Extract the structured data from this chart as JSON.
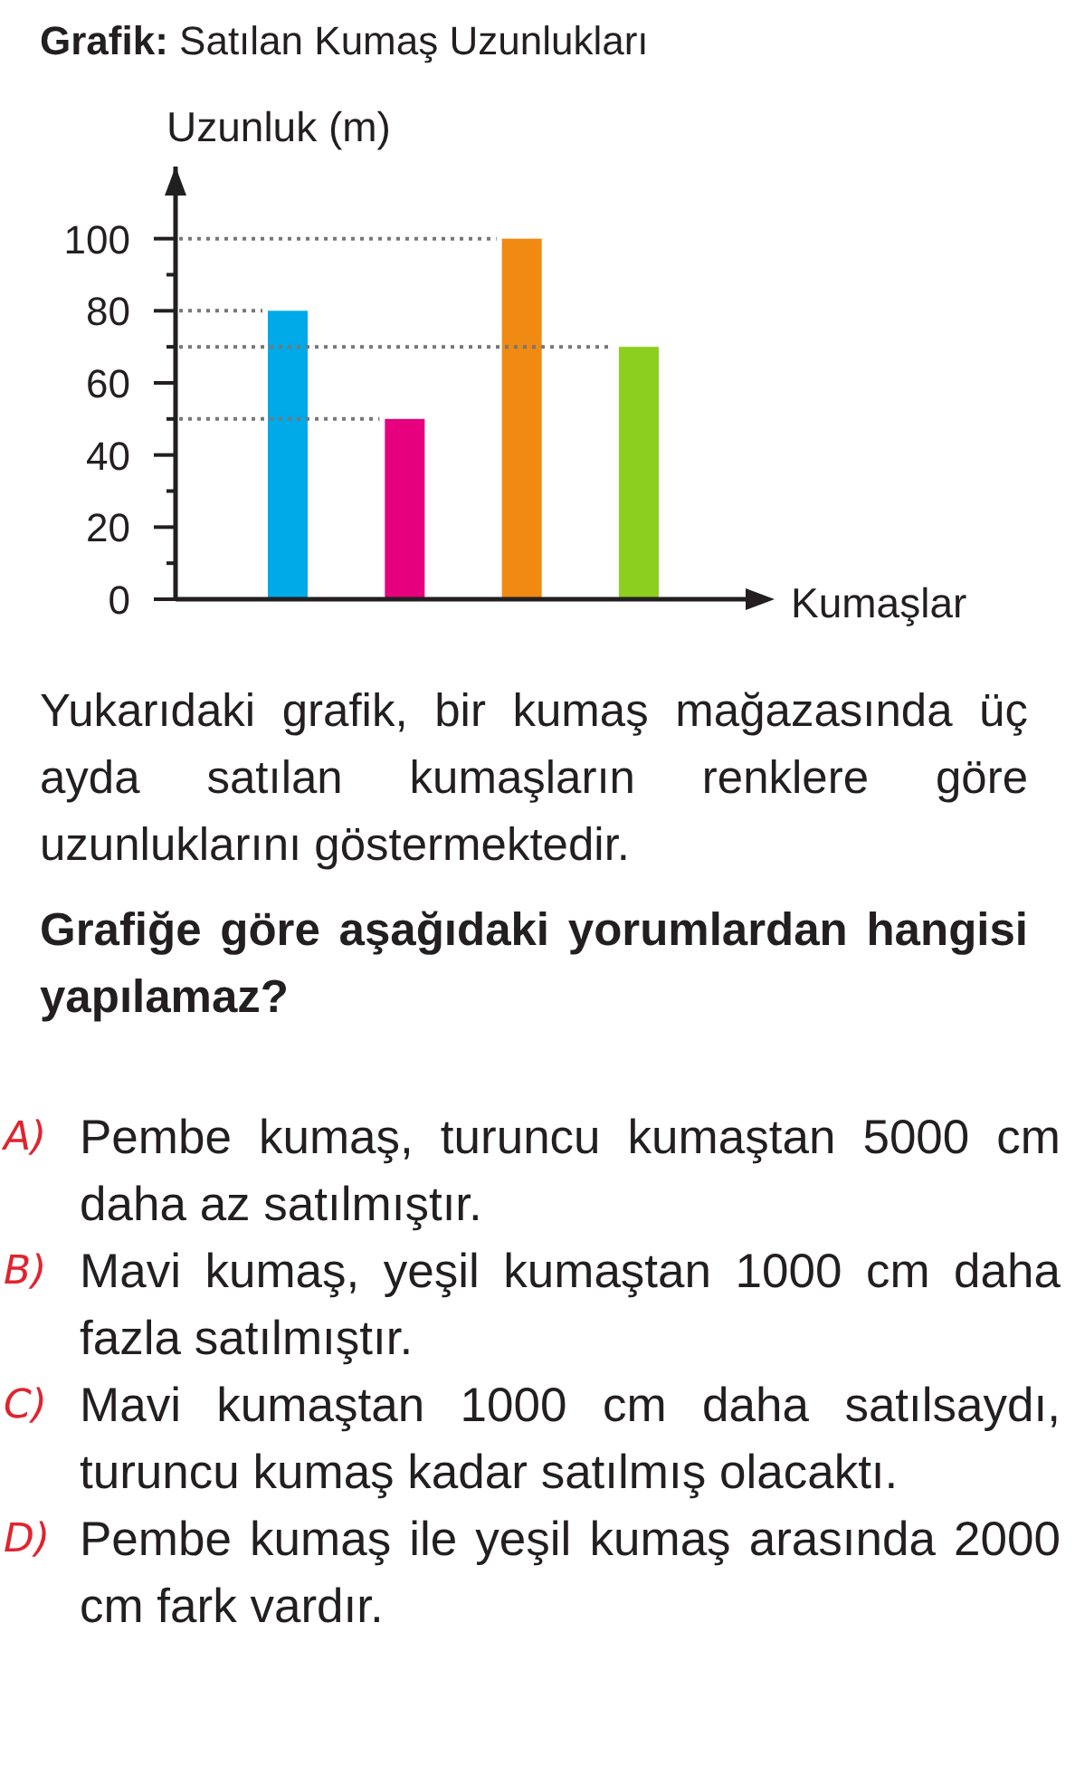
{
  "chart_data": {
    "type": "bar",
    "title": "Grafik: Satılan Kumaş Uzunlukları",
    "ylabel": "Uzunluk (m)",
    "xlabel": "Kumaşlar",
    "categories": [
      null,
      null,
      null,
      null
    ],
    "values": [
      80,
      50,
      100,
      70
    ],
    "colors": [
      "#00a9e8",
      "#e6007e",
      "#f08a12",
      "#8dcf1f"
    ],
    "ylim": [
      0,
      120
    ],
    "yticks": [
      0,
      {
        "value": 10,
        "label": null
      },
      20,
      {
        "value": 30,
        "label": null
      },
      40,
      {
        "value": 50,
        "label": null
      },
      60,
      {
        "value": 70,
        "label": null
      },
      80,
      {
        "value": 90,
        "label": null
      },
      100
    ],
    "ref_lines": [
      {
        "axis": "y",
        "value": 100,
        "color": "#777777",
        "line_style": "dotted"
      },
      {
        "axis": "y",
        "value": 80,
        "color": "#777777",
        "line_style": "dotted"
      },
      {
        "axis": "y",
        "value": 70,
        "color": "#777777",
        "line_style": "dotted"
      },
      {
        "axis": "y",
        "value": 50,
        "color": "#777777",
        "line_style": "dotted"
      }
    ],
    "annotations": [
      "Yukarıdaki grafik, bir kumaş mağazasında üç ayda satılan kumaşların renklere göre uzunluklarını göstermektedir.",
      "Grafiğe göre aşağıdaki yorumlardan hangisi yapılamaz?",
      "A) Pembe kumaş, turuncu kumaştan 5000 cm daha az satılmıştır.",
      "B) Mavi kumaş, yeşil kumaştan 1000 cm daha fazla satılmıştır.",
      "C) Mavi kumaştan 1000 cm daha satılsaydı, turuncu kumaş kadar satılmış olacaktı.",
      "D) Pembe kumaş ile yeşil kumaş arasında 2000 cm fark vardır."
    ]
  }
}
